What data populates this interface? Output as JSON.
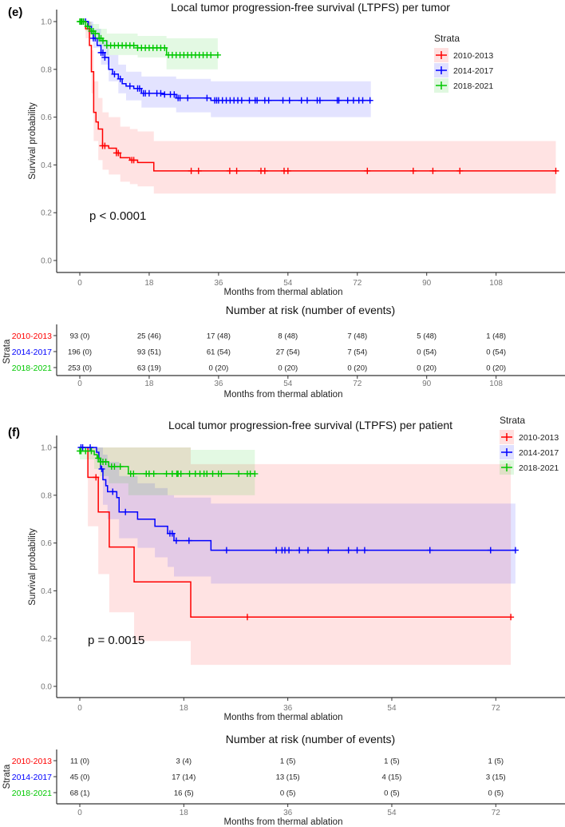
{
  "colors": {
    "2010-2013": "#ff0000",
    "2014-2017": "#0000ff",
    "2018-2021": "#00c800"
  },
  "chart_data": [
    {
      "type": "line",
      "subtype": "kaplan-meier",
      "panel_label": "(e)",
      "title": "Local tumor progression-free survival (LTPFS) per tumor",
      "xlabel": "Months from thermal ablation",
      "ylabel": "Survival probability",
      "xticks": [
        0,
        18,
        36,
        54,
        72,
        90,
        108
      ],
      "yticks": [
        "0.0",
        "0.2",
        "0.4",
        "0.6",
        "0.8",
        "1.0"
      ],
      "xlim": [
        0,
        126
      ],
      "ylim": [
        0,
        1
      ],
      "pvalue": "p < 0.0001",
      "legend": {
        "title": "Strata",
        "position": "top-right",
        "entries": [
          "2010-2013",
          "2014-2017",
          "2018-2021"
        ]
      },
      "series": [
        {
          "name": "2010-2013",
          "end": 123.5,
          "steps": [
            [
              0,
              1
            ],
            [
              1.5,
              0.97
            ],
            [
              2.5,
              0.9
            ],
            [
              3,
              0.79
            ],
            [
              3.6,
              0.62
            ],
            [
              4.2,
              0.58
            ],
            [
              4.8,
              0.55
            ],
            [
              5.9,
              0.48
            ],
            [
              7.5,
              0.47
            ],
            [
              9.5,
              0.45
            ],
            [
              10.5,
              0.43
            ],
            [
              13,
              0.42
            ],
            [
              15,
              0.41
            ],
            [
              19.2,
              0.375
            ]
          ],
          "ci": [
            [
              0,
              1,
              1
            ],
            [
              1.5,
              0.93,
              1
            ],
            [
              3,
              0.7,
              0.88
            ],
            [
              3.6,
              0.5,
              0.75
            ],
            [
              4.8,
              0.42,
              0.68
            ],
            [
              5.9,
              0.38,
              0.62
            ],
            [
              7.5,
              0.36,
              0.6
            ],
            [
              10.5,
              0.33,
              0.56
            ],
            [
              13,
              0.32,
              0.55
            ],
            [
              15,
              0.31,
              0.54
            ],
            [
              19.2,
              0.28,
              0.5
            ]
          ],
          "censored": [
            5.9,
            6.5,
            9.5,
            10,
            13.5,
            14,
            28.9,
            30.8,
            38.9,
            40.7,
            47,
            48,
            53,
            54,
            74.6,
            86.5,
            91.6,
            98.6,
            123.5
          ]
        },
        {
          "name": "2014-2017",
          "end": 75.5,
          "steps": [
            [
              0,
              1
            ],
            [
              2.2,
              0.98
            ],
            [
              3,
              0.95
            ],
            [
              3.5,
              0.93
            ],
            [
              4.5,
              0.9
            ],
            [
              5.5,
              0.87
            ],
            [
              6.5,
              0.85
            ],
            [
              7.5,
              0.8
            ],
            [
              8.5,
              0.78
            ],
            [
              10,
              0.76
            ],
            [
              11,
              0.74
            ],
            [
              12,
              0.73
            ],
            [
              14,
              0.72
            ],
            [
              16,
              0.7
            ],
            [
              22,
              0.695
            ],
            [
              25,
              0.68
            ],
            [
              34,
              0.67
            ]
          ],
          "ci": [
            [
              0,
              1,
              1
            ],
            [
              2.2,
              0.95,
              1
            ],
            [
              3.5,
              0.89,
              0.97
            ],
            [
              5.5,
              0.82,
              0.92
            ],
            [
              7.5,
              0.75,
              0.86
            ],
            [
              10,
              0.7,
              0.82
            ],
            [
              12,
              0.67,
              0.79
            ],
            [
              16,
              0.64,
              0.77
            ],
            [
              25,
              0.62,
              0.76
            ],
            [
              34,
              0.6,
              0.75
            ]
          ],
          "censored": [
            0.5,
            1,
            1.5,
            3.5,
            4,
            5.5,
            6,
            6.5,
            9,
            10.5,
            13,
            15,
            15.5,
            16.5,
            17,
            18,
            20,
            21,
            22,
            23.5,
            24.5,
            25.5,
            26,
            28,
            33,
            35,
            35.5,
            36,
            37,
            38,
            39,
            40,
            41,
            42,
            44,
            45.5,
            46,
            48,
            49,
            52.7,
            54.4,
            57.5,
            59,
            61.6,
            62.3,
            66.8,
            67.2,
            69.5,
            71,
            72.4,
            73.4,
            75.3
          ]
        },
        {
          "name": "2018-2021",
          "end": 35.8,
          "steps": [
            [
              0,
              1
            ],
            [
              1.5,
              0.98
            ],
            [
              2.5,
              0.97
            ],
            [
              3,
              0.96
            ],
            [
              4,
              0.95
            ],
            [
              5,
              0.93
            ],
            [
              6,
              0.92
            ],
            [
              7,
              0.9
            ],
            [
              15,
              0.89
            ],
            [
              22.5,
              0.86
            ]
          ],
          "ci": [
            [
              0,
              1,
              1
            ],
            [
              1.5,
              0.96,
              1
            ],
            [
              3,
              0.93,
              0.99
            ],
            [
              5,
              0.9,
              0.97
            ],
            [
              7,
              0.86,
              0.95
            ],
            [
              15,
              0.85,
              0.94
            ],
            [
              22.5,
              0.8,
              0.93
            ]
          ],
          "censored": [
            0,
            0.3,
            0.6,
            1,
            2,
            3,
            3.5,
            4,
            5,
            5.5,
            6,
            7,
            8,
            9,
            10,
            11,
            12,
            13,
            14,
            15,
            16,
            17,
            18,
            19,
            20,
            21,
            22,
            23,
            24,
            25,
            26,
            27,
            28,
            29,
            30,
            31,
            32,
            33,
            34,
            35.8
          ]
        }
      ],
      "risk_table": {
        "title": "Number at risk (number of events)",
        "ylabel": "Strata",
        "xlabel": "Months from thermal ablation",
        "times": [
          0,
          18,
          36,
          54,
          72,
          90,
          108
        ],
        "rows": [
          {
            "name": "2010-2013",
            "values": [
              "93 (0)",
              "25 (46)",
              "17 (48)",
              "8 (48)",
              "7 (48)",
              "5 (48)",
              "1 (48)"
            ]
          },
          {
            "name": "2014-2017",
            "values": [
              "196 (0)",
              "93 (51)",
              "61 (54)",
              "27 (54)",
              "7 (54)",
              "0 (54)",
              "0 (54)"
            ]
          },
          {
            "name": "2018-2021",
            "values": [
              "253 (0)",
              "63 (19)",
              "0 (20)",
              "0 (20)",
              "0 (20)",
              "0 (20)",
              "0 (20)"
            ]
          }
        ]
      }
    },
    {
      "type": "line",
      "subtype": "kaplan-meier",
      "panel_label": "(f)",
      "title": "Local tumor progression-free survival (LTPFS) per patient",
      "xlabel": "Months from thermal ablation",
      "ylabel": "Survival probability",
      "xticks": [
        0,
        18,
        36,
        54,
        72
      ],
      "yticks": [
        "0.0",
        "0.2",
        "0.4",
        "0.6",
        "0.8",
        "1.0"
      ],
      "xlim": [
        0,
        84
      ],
      "ylim": [
        0,
        1
      ],
      "pvalue": "p = 0.0015",
      "legend": {
        "title": "Strata",
        "position": "top-right",
        "entries": [
          "2010-2013",
          "2014-2017",
          "2018-2021"
        ]
      },
      "series": [
        {
          "name": "2010-2013",
          "end": 74.6,
          "steps": [
            [
              0,
              1
            ],
            [
              1.4,
              0.875
            ],
            [
              3.2,
              0.73
            ],
            [
              5.1,
              0.583
            ],
            [
              9.4,
              0.4375
            ],
            [
              19.2,
              0.29
            ]
          ],
          "ci": [
            [
              0,
              1,
              1
            ],
            [
              1.4,
              0.67,
              1
            ],
            [
              3.2,
              0.47,
              1
            ],
            [
              5.1,
              0.31,
              1
            ],
            [
              9.4,
              0.19,
              1
            ],
            [
              19.2,
              0.09,
              0.93
            ]
          ],
          "censored": [
            2.8,
            29,
            74.6
          ]
        },
        {
          "name": "2014-2017",
          "end": 75.4,
          "steps": [
            [
              0,
              1
            ],
            [
              2.9,
              0.98
            ],
            [
              3.3,
              0.955
            ],
            [
              3.6,
              0.91
            ],
            [
              4,
              0.865
            ],
            [
              4.5,
              0.84
            ],
            [
              4.8,
              0.815
            ],
            [
              6.4,
              0.79
            ],
            [
              6.8,
              0.73
            ],
            [
              10,
              0.7
            ],
            [
              13,
              0.67
            ],
            [
              15.2,
              0.64
            ],
            [
              16.3,
              0.61
            ],
            [
              22.7,
              0.57
            ]
          ],
          "ci": [
            [
              0,
              1,
              1
            ],
            [
              2.9,
              0.94,
              1
            ],
            [
              4,
              0.76,
              0.97
            ],
            [
              4.8,
              0.7,
              0.94
            ],
            [
              6.8,
              0.62,
              0.88
            ],
            [
              10,
              0.58,
              0.85
            ],
            [
              13,
              0.54,
              0.83
            ],
            [
              15.2,
              0.5,
              0.8
            ],
            [
              16.3,
              0.46,
              0.79
            ],
            [
              22.7,
              0.43,
              0.765
            ]
          ],
          "censored": [
            0.2,
            0.5,
            1.8,
            3.8,
            5.7,
            7.9,
            15.6,
            16,
            16.7,
            18.9,
            25.4,
            34,
            35,
            35.5,
            36.2,
            38,
            39.5,
            43,
            46.5,
            48,
            49.3,
            60.6,
            71.1,
            75.4
          ]
        },
        {
          "name": "2018-2021",
          "end": 30.3,
          "steps": [
            [
              0,
              0.985
            ],
            [
              2.5,
              0.97
            ],
            [
              3,
              0.955
            ],
            [
              3.5,
              0.94
            ],
            [
              5,
              0.92
            ],
            [
              8.4,
              0.89
            ]
          ],
          "ci": [
            [
              0,
              0.95,
              1
            ],
            [
              2.5,
              0.91,
              1
            ],
            [
              3.5,
              0.88,
              1
            ],
            [
              5,
              0.85,
              1
            ],
            [
              8.4,
              0.8,
              1
            ],
            [
              19.2,
              0.8,
              0.99
            ]
          ],
          "censored": [
            0,
            0.2,
            1,
            2,
            3.2,
            3.6,
            4,
            4.5,
            5.5,
            6,
            7,
            8.8,
            9.3,
            11.5,
            12,
            12.8,
            15,
            16,
            16.8,
            17,
            17.5,
            19,
            20,
            20.8,
            21.5,
            22,
            23,
            24,
            24.5,
            27.5,
            29,
            29.5,
            30.3
          ]
        }
      ],
      "risk_table": {
        "title": "Number at risk (number of events)",
        "ylabel": "Strata",
        "xlabel": "Months from thermal ablation",
        "times": [
          0,
          18,
          36,
          54,
          72
        ],
        "rows": [
          {
            "name": "2010-2013",
            "values": [
              "11 (0)",
              "3 (4)",
              "1 (5)",
              "1 (5)",
              "1 (5)"
            ]
          },
          {
            "name": "2014-2017",
            "values": [
              "45 (0)",
              "17 (14)",
              "13 (15)",
              "4 (15)",
              "3 (15)"
            ]
          },
          {
            "name": "2018-2021",
            "values": [
              "68 (1)",
              "16 (5)",
              "0 (5)",
              "0 (5)",
              "0 (5)"
            ]
          }
        ]
      }
    }
  ]
}
